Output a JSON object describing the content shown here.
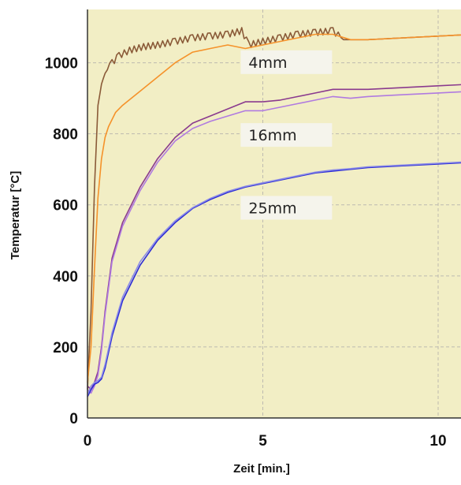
{
  "colors": {
    "plot_background": "#f2eec5",
    "grid": "#bdbab0",
    "label_box": "#f5f4ec"
  },
  "chart_data": {
    "type": "line",
    "title": "",
    "xlabel": "Zeit [min.]",
    "ylabel": "Temperatur [°C]",
    "xlim": [
      0,
      11
    ],
    "ylim": [
      0,
      1150
    ],
    "x_ticks": [
      "0",
      "5",
      "10"
    ],
    "y_ticks": [
      "0",
      "200",
      "400",
      "600",
      "800",
      "1000"
    ],
    "grid": true,
    "annotations": [
      "4mm",
      "16mm",
      "25mm"
    ],
    "series": [
      {
        "color": "#8a5a38",
        "x": [
          0,
          0.1,
          0.2,
          0.3,
          0.4,
          0.5,
          0.7,
          0.9,
          1.2,
          1.6,
          2.0,
          2.5,
          3.0,
          3.5,
          4.0,
          4.4,
          4.6,
          5.0,
          5.5,
          6.0,
          6.5,
          7.0,
          7.3,
          8.0,
          9.0,
          10.0,
          11.0
        ],
        "y": [
          80,
          300,
          650,
          880,
          940,
          970,
          1000,
          1020,
          1035,
          1045,
          1050,
          1060,
          1070,
          1075,
          1080,
          1090,
          1050,
          1060,
          1070,
          1080,
          1085,
          1090,
          1065,
          1065,
          1070,
          1075,
          1080
        ]
      },
      {
        "color": "#f5922a",
        "x": [
          0,
          0.1,
          0.2,
          0.3,
          0.4,
          0.5,
          0.6,
          0.8,
          1.0,
          1.5,
          2.0,
          2.5,
          3.0,
          3.5,
          4.0,
          4.5,
          5.0,
          5.5,
          6.0,
          6.5,
          7.0,
          7.5,
          8.0,
          9.0,
          10.0,
          11.0
        ],
        "y": [
          100,
          200,
          420,
          620,
          730,
          790,
          820,
          860,
          880,
          920,
          960,
          1000,
          1030,
          1040,
          1050,
          1040,
          1050,
          1060,
          1070,
          1080,
          1080,
          1065,
          1065,
          1070,
          1075,
          1080
        ]
      },
      {
        "color": "#8a3a8e",
        "x": [
          0,
          0.1,
          0.2,
          0.3,
          0.4,
          0.5,
          0.7,
          1.0,
          1.5,
          2.0,
          2.5,
          3.0,
          3.5,
          4.0,
          4.5,
          5.0,
          5.5,
          6.0,
          6.5,
          7.0,
          7.5,
          8.0,
          9.0,
          10.0,
          11.0
        ],
        "y": [
          90,
          80,
          100,
          130,
          200,
          300,
          450,
          550,
          650,
          730,
          790,
          830,
          850,
          870,
          890,
          890,
          895,
          905,
          915,
          925,
          925,
          925,
          930,
          935,
          940
        ]
      },
      {
        "color": "#b07ae0",
        "x": [
          0,
          0.1,
          0.2,
          0.3,
          0.4,
          0.5,
          0.7,
          1.0,
          1.5,
          2.0,
          2.5,
          3.0,
          3.5,
          4.0,
          4.5,
          5.0,
          5.5,
          6.0,
          6.5,
          7.0,
          7.5,
          8.0,
          9.0,
          10.0,
          11.0
        ],
        "y": [
          80,
          70,
          90,
          120,
          190,
          290,
          440,
          540,
          640,
          720,
          780,
          815,
          835,
          850,
          865,
          865,
          875,
          885,
          895,
          905,
          900,
          905,
          910,
          915,
          920
        ]
      },
      {
        "color": "#2a2ad6",
        "x": [
          0,
          0.1,
          0.2,
          0.3,
          0.4,
          0.5,
          0.7,
          1.0,
          1.5,
          2.0,
          2.5,
          3.0,
          3.5,
          4.0,
          4.5,
          5.0,
          5.5,
          6.0,
          6.5,
          7.0,
          7.5,
          8.0,
          9.0,
          10.0,
          11.0
        ],
        "y": [
          60,
          80,
          95,
          100,
          110,
          140,
          230,
          330,
          430,
          500,
          550,
          590,
          615,
          635,
          650,
          660,
          670,
          680,
          690,
          695,
          700,
          705,
          710,
          715,
          720
        ]
      },
      {
        "color": "#8a8ae6",
        "x": [
          0,
          0.1,
          0.2,
          0.3,
          0.4,
          0.5,
          0.7,
          1.0,
          1.5,
          2.0,
          2.5,
          3.0,
          3.5,
          4.0,
          4.5,
          5.0,
          5.5,
          6.0,
          6.5,
          7.0,
          7.5,
          8.0,
          9.0,
          10.0,
          11.0
        ],
        "y": [
          65,
          90,
          100,
          105,
          115,
          150,
          240,
          340,
          440,
          505,
          555,
          592,
          618,
          638,
          652,
          662,
          672,
          682,
          692,
          698,
          702,
          707,
          712,
          717,
          722
        ]
      }
    ]
  }
}
